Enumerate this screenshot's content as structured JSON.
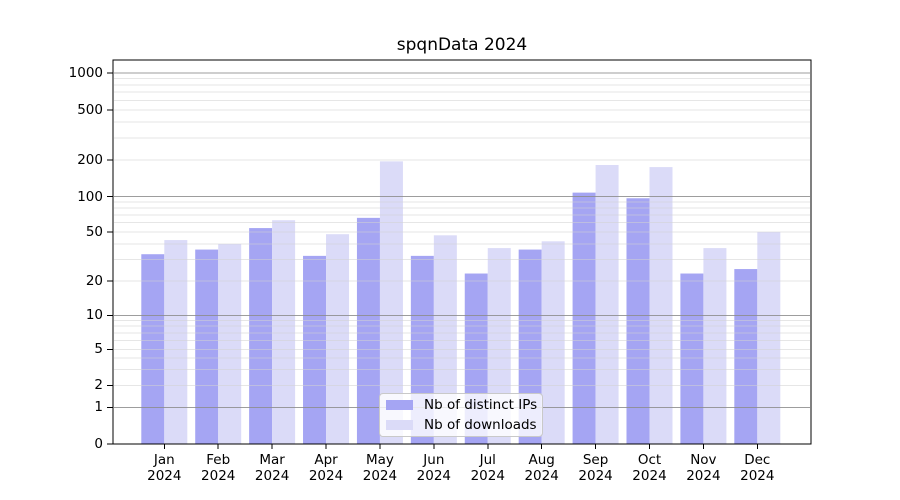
{
  "title": "spqnData 2024",
  "chart_data": {
    "type": "bar",
    "title": "spqnData 2024",
    "xlabel": "",
    "ylabel": "",
    "categories": [
      "Jan",
      "Feb",
      "Mar",
      "Apr",
      "May",
      "Jun",
      "Jul",
      "Aug",
      "Sep",
      "Oct",
      "Nov",
      "Dec"
    ],
    "year_label": "2024",
    "series": [
      {
        "name": "Nb of distinct IPs",
        "color": "#a5a5f3",
        "values": [
          33,
          36,
          54,
          32,
          66,
          32,
          23,
          36,
          108,
          97,
          23,
          25
        ]
      },
      {
        "name": "Nb of downloads",
        "color": "#dbdbf8",
        "values": [
          43,
          40,
          63,
          48,
          195,
          47,
          37,
          42,
          182,
          175,
          37,
          50
        ]
      }
    ],
    "yscale": "symlog",
    "ylim": [
      0,
      1300
    ],
    "yticks": [
      0,
      1,
      2,
      5,
      10,
      20,
      50,
      100,
      200,
      500,
      1000
    ],
    "major_gridlines": [
      1,
      10,
      100,
      1000
    ],
    "minor_gridlines": [
      2,
      3,
      4,
      5,
      6,
      7,
      8,
      9,
      20,
      30,
      40,
      50,
      60,
      70,
      80,
      90,
      200,
      300,
      400,
      500,
      600,
      700,
      800,
      900
    ],
    "grid": true,
    "grid_above_bars": true,
    "legend_position": "lower center",
    "colors": {
      "spine": "#000000",
      "major_grid": "#8c8c8c",
      "minor_grid": "#d2d2d2",
      "background": "#ffffff"
    }
  }
}
